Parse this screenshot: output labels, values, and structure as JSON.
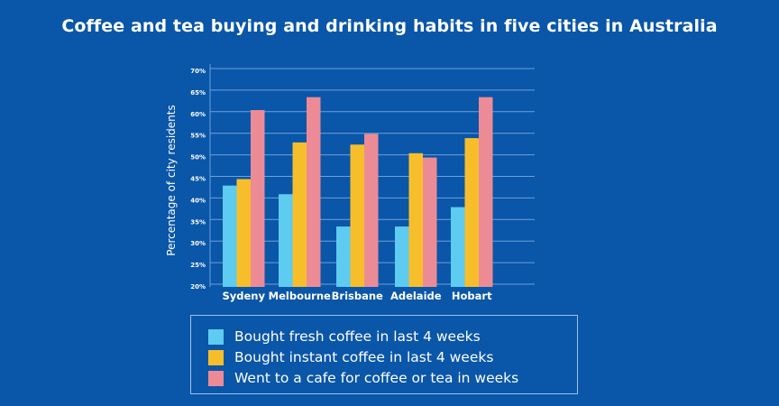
{
  "chart_data": {
    "type": "bar",
    "title": "Coffee and tea buying and drinking habits in five cities in Australia",
    "xlabel": "",
    "ylabel": "Percentage of city residents",
    "ylim": [
      20,
      70
    ],
    "yticks": [
      "20%",
      "25%",
      "30%",
      "35%",
      "40%",
      "45%",
      "50%",
      "55%",
      "60%",
      "65%",
      "70%"
    ],
    "grid": true,
    "legend_position": "bottom",
    "categories": [
      "Sydeny",
      "Melbourne",
      "Brisbane",
      "Adelaide",
      "Hobart"
    ],
    "series": [
      {
        "name": "Bought fresh coffee in last 4 weeks",
        "color": "#5ecbf0",
        "values": [
          43.5,
          41.5,
          34,
          34,
          38.5
        ]
      },
      {
        "name": "Bought instant coffee in last 4 weeks",
        "color": "#f7be2c",
        "values": [
          45,
          53.5,
          53,
          51,
          54.5
        ]
      },
      {
        "name": "Went to a cafe for coffee or tea in weeks",
        "color": "#ec8b96",
        "values": [
          61,
          64,
          55.5,
          50,
          64
        ]
      }
    ]
  },
  "colors": {
    "background": "#0a56a8",
    "gridline": "#6fa0d8"
  }
}
